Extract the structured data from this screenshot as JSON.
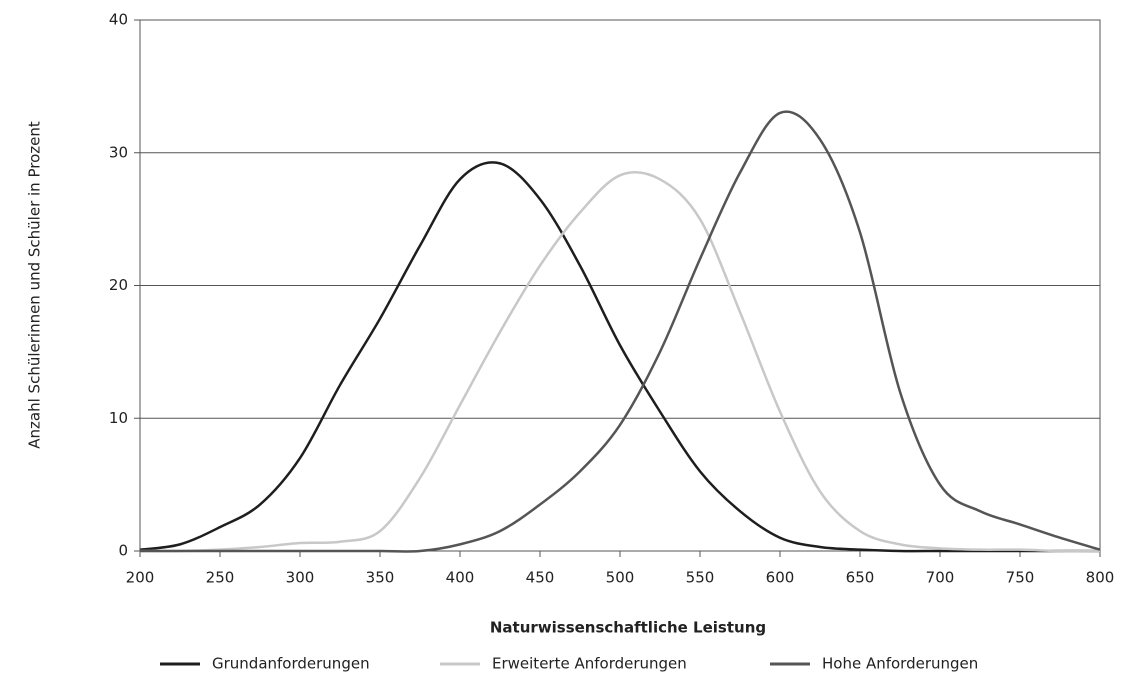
{
  "chart_data": {
    "type": "line",
    "xlabel": "Naturwissenschaftliche Leistung",
    "ylabel": "Anzahl Schülerinnen und Schüler in Prozent",
    "x": [
      200,
      225,
      250,
      275,
      300,
      325,
      350,
      375,
      400,
      425,
      450,
      475,
      500,
      525,
      550,
      575,
      600,
      625,
      650,
      675,
      700,
      725,
      750,
      775,
      800
    ],
    "series": [
      {
        "name": "Grundanforderungen",
        "color": "#1e1e1e",
        "values": [
          0.1,
          0.5,
          1.8,
          3.5,
          7,
          12.5,
          17.5,
          23,
          28,
          29.2,
          26.5,
          21.5,
          15.5,
          10.5,
          6,
          3,
          1,
          0.3,
          0.1,
          0,
          0,
          0,
          0,
          0,
          0
        ]
      },
      {
        "name": "Erweiterte Anforderungen",
        "color": "#c8c8c8",
        "values": [
          0,
          0,
          0.1,
          0.3,
          0.6,
          0.7,
          1.5,
          5.5,
          11,
          16.5,
          21.5,
          25.5,
          28.3,
          28,
          25,
          18,
          10.5,
          4.5,
          1.5,
          0.5,
          0.2,
          0.1,
          0.1,
          0,
          0
        ]
      },
      {
        "name": "Hohe Anforderungen",
        "color": "#555555",
        "values": [
          0,
          0,
          0,
          0,
          0,
          0,
          0,
          0,
          0.5,
          1.5,
          3.5,
          6,
          9.5,
          15,
          22,
          28.5,
          33,
          31,
          24,
          12,
          5,
          3,
          2,
          1,
          0.1
        ]
      }
    ],
    "xlim": [
      200,
      800
    ],
    "xticks": [
      200,
      250,
      300,
      350,
      400,
      450,
      500,
      550,
      600,
      650,
      700,
      750,
      800
    ],
    "ylim": [
      0,
      40
    ],
    "yticks": [
      0,
      10,
      20,
      30,
      40
    ],
    "grid": true,
    "legend": "bottom"
  }
}
